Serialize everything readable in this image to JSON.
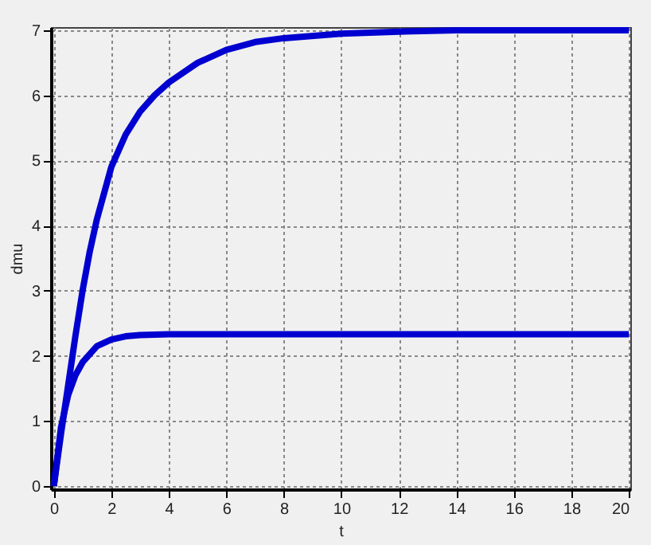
{
  "chart_data": {
    "type": "line",
    "xlabel": "t",
    "ylabel": "dmu",
    "xlim": [
      -0.1,
      20.05
    ],
    "ylim": [
      -0.05,
      7.05
    ],
    "xticks": [
      0,
      2,
      4,
      6,
      8,
      10,
      12,
      14,
      16,
      18,
      20
    ],
    "yticks": [
      0,
      1,
      2,
      3,
      4,
      5,
      6,
      7
    ],
    "grid": true,
    "line_style": "solid",
    "marker": "none",
    "series": [
      {
        "color": "#0000d0",
        "x": [
          0,
          0.25,
          0.5,
          0.75,
          1,
          1.25,
          1.5,
          2,
          2.5,
          3,
          3.5,
          4,
          5,
          6,
          7,
          8,
          10,
          12,
          14,
          16,
          18,
          20
        ],
        "values": [
          0,
          0.8,
          1.55,
          2.3,
          3.0,
          3.6,
          4.1,
          4.9,
          5.4,
          5.75,
          6.0,
          6.2,
          6.5,
          6.7,
          6.82,
          6.88,
          6.95,
          6.98,
          7.0,
          7.0,
          7.0,
          7.0
        ]
      },
      {
        "color": "#0000d0",
        "x": [
          0,
          0.25,
          0.5,
          0.75,
          1,
          1.5,
          2,
          2.5,
          3,
          4,
          6,
          10,
          20
        ],
        "values": [
          0,
          0.9,
          1.4,
          1.7,
          1.9,
          2.15,
          2.25,
          2.3,
          2.32,
          2.33,
          2.33,
          2.33,
          2.33
        ]
      }
    ]
  }
}
